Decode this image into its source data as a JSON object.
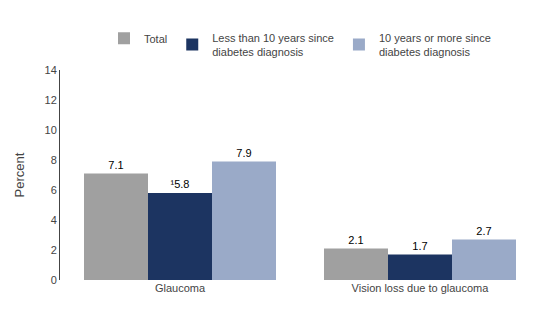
{
  "chart_data": {
    "type": "bar",
    "categories": [
      "Glaucoma",
      "Vision loss due to glaucoma"
    ],
    "series": [
      {
        "name": "Total",
        "values": [
          7.1,
          2.1
        ],
        "color": "#a0a0a0"
      },
      {
        "name": "Less than 10 years since\ndiabetes diagnosis",
        "values": [
          5.8,
          1.7
        ],
        "value_labels": [
          "¹5.8",
          "1.7"
        ],
        "color": "#1c3461"
      },
      {
        "name": "10 years or more since\ndiabetes diagnosis",
        "values": [
          7.9,
          2.7
        ],
        "color": "#9aaac8"
      }
    ],
    "ylabel": "Percent",
    "ylim": [
      0,
      14
    ],
    "yticks": [
      0,
      2,
      4,
      6,
      8,
      10,
      12,
      14
    ],
    "grid": false,
    "legend": "top",
    "data_labels": true
  }
}
